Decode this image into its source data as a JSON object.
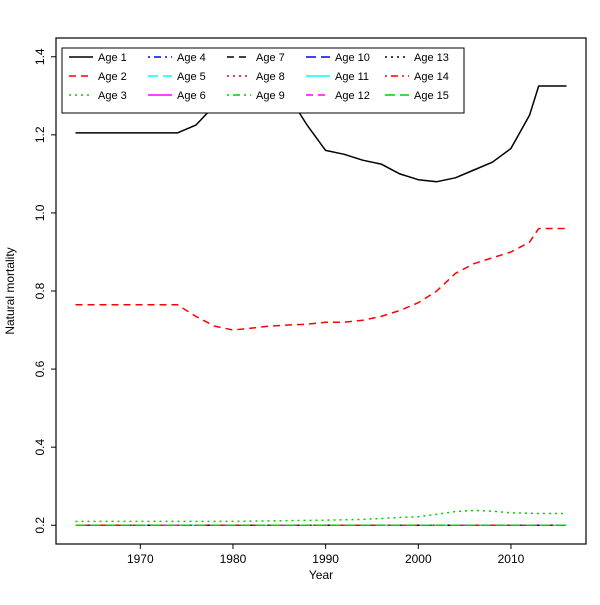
{
  "chart_data": {
    "type": "line",
    "title": "",
    "xlabel": "Year",
    "ylabel": "Natural mortality",
    "xlim": [
      1960.9,
      2018.1
    ],
    "ylim": [
      0.152,
      1.448
    ],
    "x_ticks": [
      1970,
      1980,
      1990,
      2000,
      2010
    ],
    "y_ticks": [
      0.2,
      0.4,
      0.6,
      0.8,
      1.0,
      1.2,
      1.4
    ],
    "grid": false,
    "legend_position": "top-left",
    "legend_columns": 5,
    "legend_rows": 3,
    "axis_color": "#000000",
    "background_color": "#ffffff",
    "series": [
      {
        "name": "Age 1",
        "color": "#000000",
        "linetype": "solid",
        "x": [
          1963,
          1974,
          1976,
          1978,
          1980,
          1982,
          1984,
          1986,
          1988,
          1990,
          1992,
          1994,
          1996,
          1998,
          2000,
          2002,
          2004,
          2006,
          2008,
          2010,
          2012,
          2013,
          2016
        ],
        "y": [
          1.205,
          1.205,
          1.225,
          1.275,
          1.33,
          1.35,
          1.345,
          1.3,
          1.225,
          1.16,
          1.15,
          1.135,
          1.125,
          1.1,
          1.085,
          1.08,
          1.09,
          1.11,
          1.13,
          1.165,
          1.25,
          1.325,
          1.325
        ]
      },
      {
        "name": "Age 2",
        "color": "#FF0000",
        "linetype": "dashed",
        "x": [
          1963,
          1974,
          1976,
          1978,
          1980,
          1982,
          1984,
          1986,
          1988,
          1990,
          1992,
          1994,
          1996,
          1998,
          2000,
          2002,
          2004,
          2006,
          2008,
          2010,
          2012,
          2013,
          2016
        ],
        "y": [
          0.765,
          0.765,
          0.735,
          0.71,
          0.7,
          0.705,
          0.71,
          0.713,
          0.715,
          0.72,
          0.72,
          0.725,
          0.735,
          0.75,
          0.77,
          0.8,
          0.845,
          0.87,
          0.885,
          0.9,
          0.925,
          0.96,
          0.96
        ]
      },
      {
        "name": "Age 3",
        "color": "#00CD00",
        "linetype": "dotted",
        "x": [
          1963,
          1974,
          1980,
          1986,
          1990,
          1994,
          1998,
          2000,
          2002,
          2004,
          2006,
          2008,
          2010,
          2013,
          2016
        ],
        "y": [
          0.21,
          0.21,
          0.21,
          0.212,
          0.213,
          0.215,
          0.22,
          0.222,
          0.228,
          0.235,
          0.238,
          0.236,
          0.232,
          0.23,
          0.23
        ]
      },
      {
        "name": "Age 4",
        "color": "#0000FF",
        "linetype": "dotdash",
        "x": [
          1963,
          2016
        ],
        "y": [
          0.2,
          0.2
        ]
      },
      {
        "name": "Age 5",
        "color": "#00FFFF",
        "linetype": "longdash",
        "x": [
          1963,
          2016
        ],
        "y": [
          0.2,
          0.2
        ]
      },
      {
        "name": "Age 6",
        "color": "#FF00FF",
        "linetype": "solid",
        "x": [
          1963,
          2016
        ],
        "y": [
          0.2,
          0.2
        ]
      },
      {
        "name": "Age 7",
        "color": "#000000",
        "linetype": "dashed",
        "x": [
          1963,
          2016
        ],
        "y": [
          0.2,
          0.2
        ]
      },
      {
        "name": "Age 8",
        "color": "#FF0000",
        "linetype": "dotted",
        "x": [
          1963,
          2016
        ],
        "y": [
          0.2,
          0.2
        ]
      },
      {
        "name": "Age 9",
        "color": "#00CD00",
        "linetype": "dotdash",
        "x": [
          1963,
          2016
        ],
        "y": [
          0.2,
          0.2
        ]
      },
      {
        "name": "Age 10",
        "color": "#0000FF",
        "linetype": "longdash",
        "x": [
          1963,
          2016
        ],
        "y": [
          0.2,
          0.2
        ]
      },
      {
        "name": "Age 11",
        "color": "#00FFFF",
        "linetype": "solid",
        "x": [
          1963,
          2016
        ],
        "y": [
          0.2,
          0.2
        ]
      },
      {
        "name": "Age 12",
        "color": "#FF00FF",
        "linetype": "dashed",
        "x": [
          1963,
          2016
        ],
        "y": [
          0.2,
          0.2
        ]
      },
      {
        "name": "Age 13",
        "color": "#000000",
        "linetype": "dotted",
        "x": [
          1963,
          2016
        ],
        "y": [
          0.2,
          0.2
        ]
      },
      {
        "name": "Age 14",
        "color": "#FF0000",
        "linetype": "dotdash",
        "x": [
          1963,
          2016
        ],
        "y": [
          0.2,
          0.2
        ]
      },
      {
        "name": "Age 15",
        "color": "#00CD00",
        "linetype": "longdash",
        "x": [
          1963,
          2016
        ],
        "y": [
          0.2,
          0.2
        ]
      }
    ]
  }
}
